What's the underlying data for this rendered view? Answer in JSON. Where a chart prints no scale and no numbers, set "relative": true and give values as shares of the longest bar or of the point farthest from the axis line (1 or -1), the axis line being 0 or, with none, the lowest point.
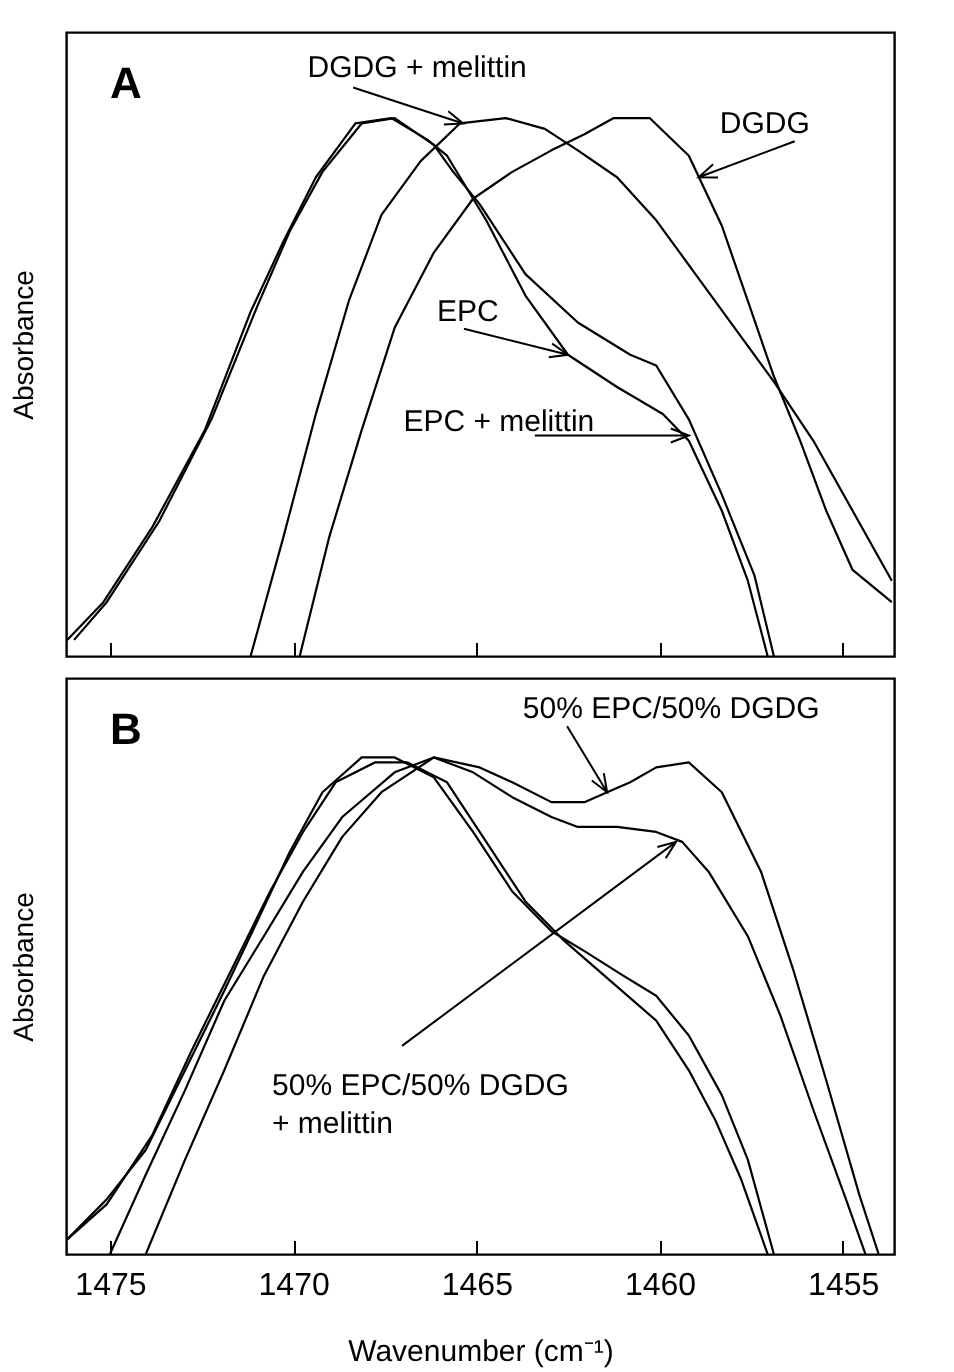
{
  "chart_data": [
    {
      "type": "line",
      "relative": true,
      "ylabel": "Absorbance",
      "xlim": [
        1476.2,
        1453.6
      ],
      "xticks": [
        1475,
        1470,
        1465,
        1460,
        1455
      ],
      "tick_labels": false,
      "annotations": [
        "A",
        {
          "text": "DGDG + melittin",
          "x": 1465.36,
          "y": 0.99
        },
        {
          "text": "DGDG",
          "x": 1458.93,
          "y": 0.89
        },
        {
          "text": "EPC",
          "x": 1462.5,
          "y": 0.56
        },
        {
          "text": "EPC + melittin",
          "x": 1459.2,
          "y": 0.41
        }
      ],
      "series": [
        {
          "color": "#000000",
          "x": [
            1476.16,
            1475.18,
            1473.84,
            1472.41,
            1471.16,
            1470.27,
            1469.38,
            1468.3,
            1467.32,
            1466.34,
            1465.8,
            1464.73,
            1463.66,
            1462.5,
            1461.16,
            1459.91,
            1459.2,
            1458.3,
            1457.59,
            1457.05
          ],
          "values": [
            0.03,
            0.1,
            0.24,
            0.42,
            0.64,
            0.77,
            0.89,
            0.99,
            1.0,
            0.96,
            0.93,
            0.81,
            0.67,
            0.56,
            0.5,
            0.45,
            0.4,
            0.27,
            0.14,
            0
          ]
        },
        {
          "color": "#000000",
          "x": [
            1475.98,
            1475.09,
            1473.66,
            1472.23,
            1470.98,
            1470.09,
            1469.2,
            1468.13,
            1467.23,
            1466.16,
            1465.63,
            1464.91,
            1463.66,
            1462.23,
            1460.8,
            1460.09,
            1459.2,
            1458.3,
            1457.41,
            1456.88
          ],
          "values": [
            0.03,
            0.1,
            0.25,
            0.44,
            0.65,
            0.79,
            0.9,
            0.99,
            1.0,
            0.95,
            0.9,
            0.84,
            0.71,
            0.62,
            0.56,
            0.54,
            0.44,
            0.3,
            0.15,
            0
          ]
        },
        {
          "color": "#000000",
          "x": [
            1471.16,
            1470.27,
            1469.38,
            1468.48,
            1467.59,
            1466.52,
            1465.45,
            1464.2,
            1463.13,
            1462.23,
            1461.16,
            1460.09,
            1459.02,
            1457.95,
            1456.88,
            1455.8,
            1454.73,
            1453.66
          ],
          "values": [
            0,
            0.22,
            0.45,
            0.66,
            0.82,
            0.92,
            0.99,
            1.0,
            0.98,
            0.94,
            0.89,
            0.81,
            0.71,
            0.61,
            0.51,
            0.4,
            0.27,
            0.14
          ]
        },
        {
          "color": "#000000",
          "x": [
            1469.82,
            1469.02,
            1468.13,
            1467.23,
            1466.16,
            1465.09,
            1464.02,
            1462.95,
            1462.05,
            1461.25,
            1460.27,
            1459.2,
            1458.3,
            1457.59,
            1456.88,
            1456.16,
            1455.45,
            1454.73,
            1453.66
          ],
          "values": [
            0,
            0.22,
            0.42,
            0.61,
            0.75,
            0.85,
            0.9,
            0.94,
            0.97,
            1.0,
            1.0,
            0.93,
            0.8,
            0.66,
            0.52,
            0.4,
            0.27,
            0.16,
            0.1
          ]
        }
      ]
    },
    {
      "type": "line",
      "relative": true,
      "ylabel": "Absorbance",
      "xlabel": "Wavenumber (cm⁻¹)",
      "xlim": [
        1476.2,
        1453.6
      ],
      "xticks": [
        1475,
        1470,
        1465,
        1460,
        1455
      ],
      "tick_labels": "x",
      "annotations": [
        "B",
        {
          "text": "50% EPC/50% DGDG",
          "x": 1461.43,
          "y": 0.93
        },
        {
          "text": "50% EPC/50% DGDG\n+ melittin",
          "x": 1459.55,
          "y": 0.83
        }
      ],
      "series": [
        {
          "color": "#000000",
          "x": [
            1474.02,
            1472.95,
            1471.88,
            1470.8,
            1469.73,
            1468.66,
            1467.59,
            1466.16,
            1464.91,
            1464.02,
            1462.95,
            1462.05,
            1461.43,
            1460.8,
            1460.09,
            1459.2,
            1458.3,
            1457.23,
            1456.34,
            1455.45,
            1454.55,
            1454.02
          ],
          "values": [
            0,
            0.19,
            0.37,
            0.56,
            0.71,
            0.84,
            0.93,
            1.0,
            0.98,
            0.95,
            0.91,
            0.91,
            0.93,
            0.95,
            0.98,
            0.99,
            0.93,
            0.77,
            0.57,
            0.35,
            0.12,
            0
          ]
        },
        {
          "color": "#000000",
          "x": [
            1475.0,
            1474.02,
            1472.95,
            1471.88,
            1470.8,
            1469.73,
            1468.66,
            1467.23,
            1466.16,
            1465.09,
            1464.02,
            1462.95,
            1462.23,
            1461.16,
            1460.09,
            1459.38,
            1458.66,
            1457.59,
            1456.7,
            1455.8,
            1454.91,
            1454.38
          ],
          "values": [
            0,
            0.16,
            0.33,
            0.51,
            0.64,
            0.77,
            0.88,
            0.97,
            1.0,
            0.97,
            0.92,
            0.88,
            0.86,
            0.86,
            0.85,
            0.83,
            0.77,
            0.64,
            0.48,
            0.29,
            0.11,
            0
          ]
        },
        {
          "color": "#000000",
          "x": [
            1476.16,
            1475.09,
            1474.02,
            1472.95,
            1471.88,
            1470.98,
            1470.09,
            1469.2,
            1468.13,
            1467.23,
            1466.16,
            1465.09,
            1464.02,
            1462.95,
            1462.05,
            1460.98,
            1460.09,
            1459.2,
            1458.3,
            1457.59,
            1456.88
          ],
          "values": [
            0.03,
            0.11,
            0.21,
            0.37,
            0.53,
            0.67,
            0.81,
            0.93,
            1.0,
            1.0,
            0.96,
            0.85,
            0.73,
            0.65,
            0.61,
            0.56,
            0.52,
            0.44,
            0.32,
            0.19,
            0
          ]
        },
        {
          "color": "#000000",
          "x": [
            1476.16,
            1475.09,
            1473.84,
            1472.77,
            1471.7,
            1470.63,
            1469.73,
            1468.84,
            1467.77,
            1466.88,
            1465.8,
            1464.73,
            1463.66,
            1462.59,
            1461.34,
            1460.09,
            1459.2,
            1458.48,
            1457.77,
            1457.05
          ],
          "values": [
            0.03,
            0.1,
            0.24,
            0.41,
            0.57,
            0.73,
            0.85,
            0.95,
            0.99,
            0.99,
            0.95,
            0.83,
            0.71,
            0.63,
            0.55,
            0.47,
            0.37,
            0.27,
            0.15,
            0
          ]
        }
      ]
    }
  ]
}
